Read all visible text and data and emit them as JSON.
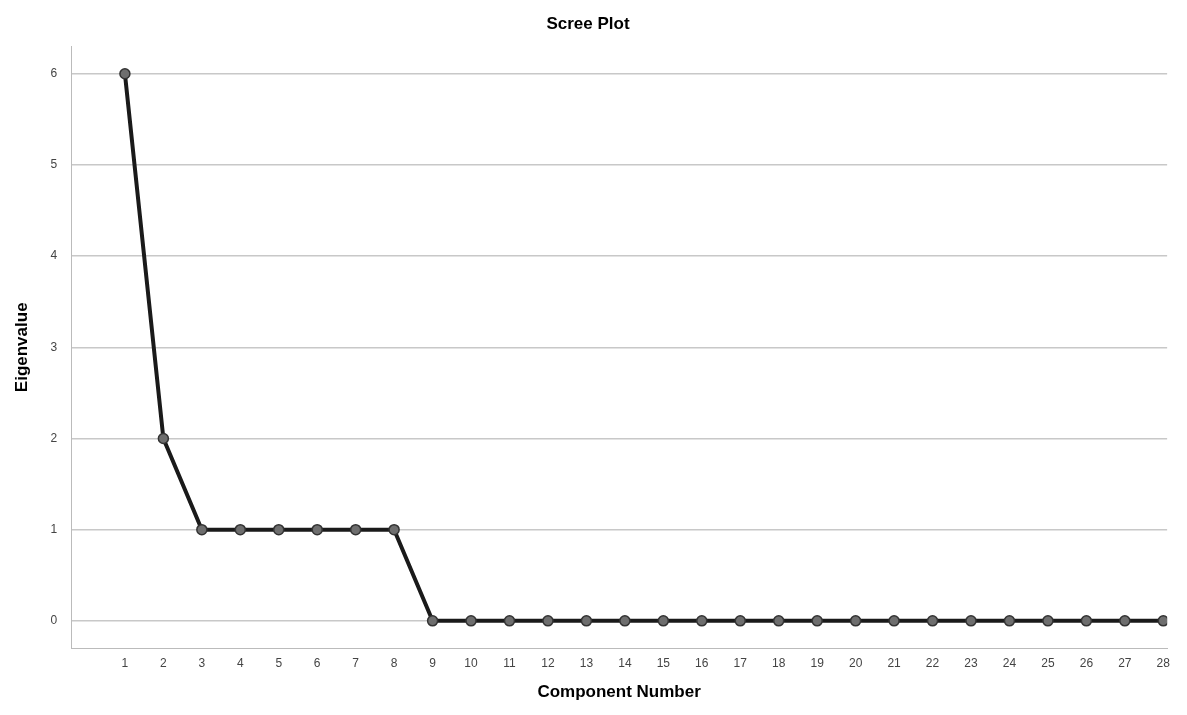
{
  "chart_data": {
    "type": "line",
    "title": "Scree Plot",
    "xlabel": "Component Number",
    "ylabel": "Eigenvalue",
    "x": [
      1,
      2,
      3,
      4,
      5,
      6,
      7,
      8,
      9,
      10,
      11,
      12,
      13,
      14,
      15,
      16,
      17,
      18,
      19,
      20,
      21,
      22,
      23,
      24,
      25,
      26,
      27,
      28
    ],
    "xlim": [
      -0.4,
      28.1
    ],
    "xticks": [
      1,
      2,
      3,
      4,
      5,
      6,
      7,
      8,
      9,
      10,
      11,
      12,
      13,
      14,
      15,
      16,
      17,
      18,
      19,
      20,
      21,
      22,
      23,
      24,
      25,
      26,
      27,
      28
    ],
    "series": [
      {
        "color": "#1a1a1a",
        "values": [
          6,
          2,
          1,
          1,
          1,
          1,
          1,
          1,
          0,
          0,
          0,
          0,
          0,
          0,
          0,
          0,
          0,
          0,
          0,
          0,
          0,
          0,
          0,
          0,
          0,
          0,
          0,
          0
        ]
      }
    ],
    "ylim": [
      -0.3,
      6.3
    ],
    "yticks": [
      0,
      1,
      2,
      3,
      4,
      5,
      6
    ],
    "grid": "y",
    "legend": false,
    "marker": "circle",
    "line_style": "solid"
  }
}
